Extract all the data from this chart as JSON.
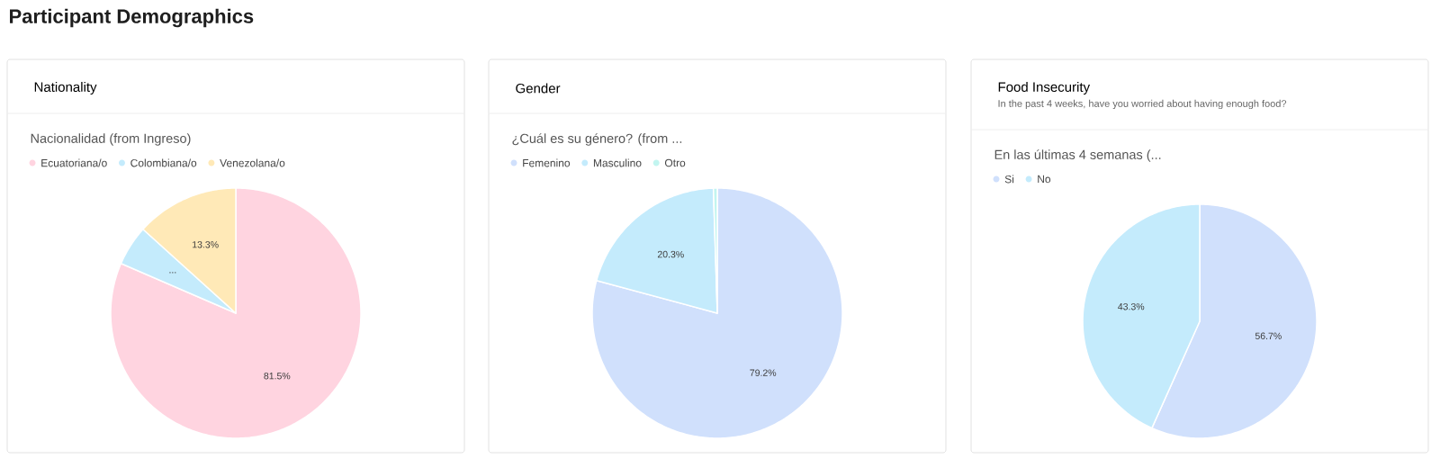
{
  "chart_data": [
    {
      "type": "pie",
      "title": "Nationality",
      "subtitle": "Nacionalidad (from Ingreso)",
      "annotations": [
        "Participant Demographics"
      ],
      "categories": [
        "Ecuatoriana/o",
        "Colombiana/o",
        "Venezolana/o"
      ],
      "values": [
        81.5,
        5.2,
        13.3
      ],
      "colors": [
        "#ffd4e0",
        "#c4ebfc",
        "#ffe9b7"
      ],
      "value_labels": [
        "81.5%",
        "...",
        "13.3%"
      ],
      "legend": "top left"
    },
    {
      "type": "pie",
      "title": "Gender",
      "subtitle": "¿Cuál es su género? (from ...",
      "categories": [
        "Femenino",
        "Masculino",
        "Otro"
      ],
      "values": [
        79.2,
        20.3,
        0.5
      ],
      "colors": [
        "#d0e0fc",
        "#c4ebfc",
        "#c2f5f0"
      ],
      "value_labels": [
        "79.2%",
        "20.3%",
        null
      ],
      "legend": "top left"
    },
    {
      "type": "pie",
      "title": "Food Insecurity",
      "subtitle": "En las últimas 4 semanas (...",
      "annotations": [
        "In the past 4 weeks, have you worried about having enough food?"
      ],
      "categories": [
        "Si",
        "No"
      ],
      "values": [
        56.7,
        43.3
      ],
      "colors": [
        "#d0e0fc",
        "#c4ebfc"
      ],
      "value_labels": [
        "56.7%",
        "43.3%"
      ],
      "legend": "top left"
    }
  ]
}
